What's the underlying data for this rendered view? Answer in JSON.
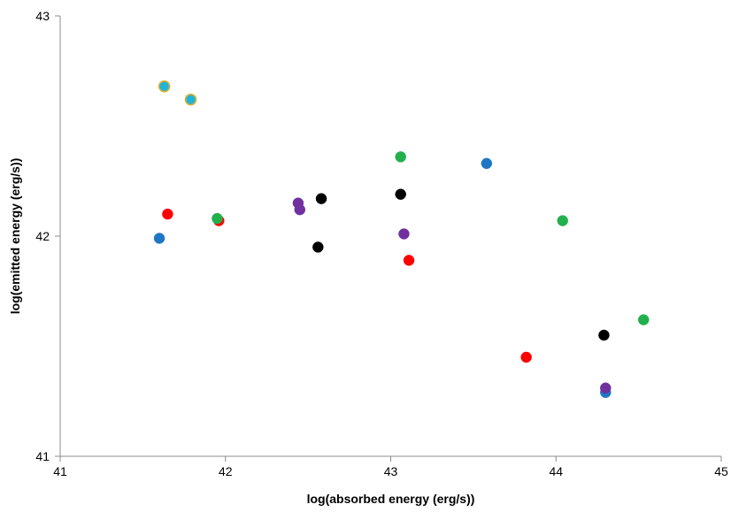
{
  "chart_data": {
    "type": "scatter",
    "title": "",
    "xlabel": "log(absorbed energy (erg/s))",
    "ylabel": "log(emitted energy (erg/s))",
    "xlim": [
      41,
      45
    ],
    "ylim": [
      41,
      43
    ],
    "xticks": [
      "41",
      "42",
      "43",
      "44",
      "45"
    ],
    "yticks": [
      "41",
      "42",
      "43"
    ],
    "grid": false,
    "legend": "none",
    "series": [
      {
        "color": "#1f77c4",
        "points": [
          {
            "x": 41.6,
            "y": 41.99
          },
          {
            "x": 43.58,
            "y": 42.33
          },
          {
            "x": 44.3,
            "y": 41.29
          }
        ]
      },
      {
        "color": "#1fb4dc",
        "outline": "#e0b030",
        "points": [
          {
            "x": 41.63,
            "y": 42.68
          },
          {
            "x": 41.79,
            "y": 42.62
          }
        ]
      },
      {
        "color": "#ff0000",
        "points": [
          {
            "x": 41.65,
            "y": 42.1
          },
          {
            "x": 41.96,
            "y": 42.07
          },
          {
            "x": 43.11,
            "y": 41.89
          },
          {
            "x": 43.82,
            "y": 41.45
          }
        ]
      },
      {
        "color": "#22b04c",
        "points": [
          {
            "x": 41.95,
            "y": 42.08
          },
          {
            "x": 43.06,
            "y": 42.36
          },
          {
            "x": 44.04,
            "y": 42.07
          },
          {
            "x": 44.53,
            "y": 41.62
          }
        ]
      },
      {
        "color": "#7030a0",
        "points": [
          {
            "x": 42.44,
            "y": 42.15
          },
          {
            "x": 42.45,
            "y": 42.12
          },
          {
            "x": 43.08,
            "y": 42.01
          },
          {
            "x": 44.3,
            "y": 41.31
          }
        ]
      },
      {
        "color": "#000000",
        "points": [
          {
            "x": 42.56,
            "y": 41.95
          },
          {
            "x": 42.58,
            "y": 42.17
          },
          {
            "x": 43.06,
            "y": 42.19
          },
          {
            "x": 44.29,
            "y": 41.55
          }
        ]
      }
    ]
  }
}
